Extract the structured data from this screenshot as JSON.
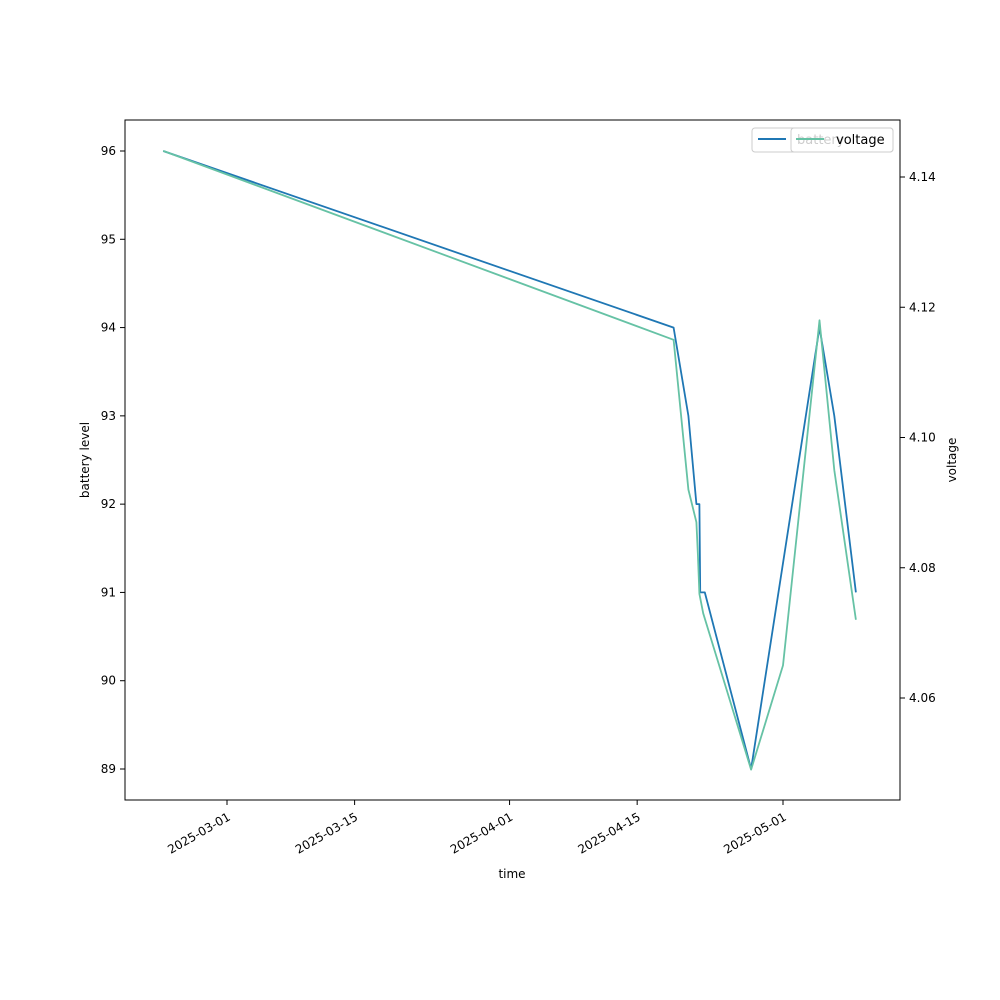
{
  "chart_data": {
    "type": "line",
    "xlabel": "time",
    "ylabel_left": "battery level",
    "ylabel_right": "voltage",
    "x_ticks": [
      "2025-03-01",
      "2025-03-15",
      "2025-04-01",
      "2025-04-15",
      "2025-05-01"
    ],
    "y_left_ticks": [
      89,
      90,
      91,
      92,
      93,
      94,
      95,
      96
    ],
    "y_right_ticks": [
      4.06,
      4.08,
      4.1,
      4.12,
      4.14
    ],
    "legends": [
      {
        "position": "top-right",
        "entries": [
          {
            "name": "battery",
            "color": "#1f77b4"
          }
        ]
      },
      {
        "position": "top-right",
        "entries": [
          {
            "name": "voltage",
            "color": "#66c2a5"
          }
        ]
      }
    ],
    "series": [
      {
        "name": "battery",
        "axis": "left",
        "color": "#1f77b4",
        "points": [
          {
            "x": "2025-02-22",
            "y": 96
          },
          {
            "x": "2025-04-19",
            "y": 94
          },
          {
            "x": "2025-04-20 15:00",
            "y": 93
          },
          {
            "x": "2025-04-21 12:00",
            "y": 92
          },
          {
            "x": "2025-04-21 20:00",
            "y": 92
          },
          {
            "x": "2025-04-21 22:00",
            "y": 91
          },
          {
            "x": "2025-04-22 10:00",
            "y": 91
          },
          {
            "x": "2025-04-27 12:00",
            "y": 89
          },
          {
            "x": "2025-05-05",
            "y": 94
          },
          {
            "x": "2025-05-06 15:00",
            "y": 93
          },
          {
            "x": "2025-05-09",
            "y": 91
          }
        ]
      },
      {
        "name": "voltage",
        "axis": "right",
        "color": "#66c2a5",
        "points": [
          {
            "x": "2025-02-22",
            "y": 4.144
          },
          {
            "x": "2025-04-19",
            "y": 4.115
          },
          {
            "x": "2025-04-20 15:00",
            "y": 4.092
          },
          {
            "x": "2025-04-21 12:00",
            "y": 4.087
          },
          {
            "x": "2025-04-21 16:00",
            "y": 4.082
          },
          {
            "x": "2025-04-21 20:00",
            "y": 4.076
          },
          {
            "x": "2025-04-22 06:00",
            "y": 4.073
          },
          {
            "x": "2025-04-27 12:00",
            "y": 4.049
          },
          {
            "x": "2025-05-01",
            "y": 4.065
          },
          {
            "x": "2025-05-05",
            "y": 4.118
          },
          {
            "x": "2025-05-06 15:00",
            "y": 4.095
          },
          {
            "x": "2025-05-09",
            "y": 4.072
          }
        ]
      }
    ]
  }
}
